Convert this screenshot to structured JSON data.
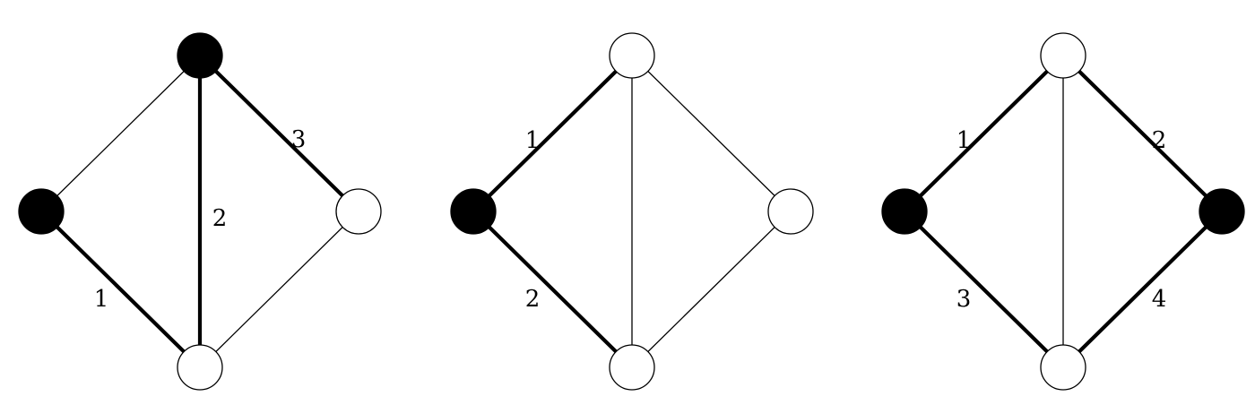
{
  "colors": {
    "stroke": "#000000",
    "filled_node": "#000000",
    "empty_node": "#ffffff",
    "background": "#ffffff"
  },
  "graphs": [
    {
      "name": "graph-1",
      "nodes": [
        {
          "id": "top",
          "filled": true
        },
        {
          "id": "left",
          "filled": true
        },
        {
          "id": "right",
          "filled": false
        },
        {
          "id": "bottom",
          "filled": false
        }
      ],
      "edges": [
        {
          "id": "top-left",
          "bold": false,
          "label": ""
        },
        {
          "id": "top-right",
          "bold": true,
          "label": "3"
        },
        {
          "id": "top-bottom",
          "bold": true,
          "label": "2"
        },
        {
          "id": "left-bottom",
          "bold": true,
          "label": "1"
        },
        {
          "id": "right-bottom",
          "bold": false,
          "label": ""
        }
      ]
    },
    {
      "name": "graph-2",
      "nodes": [
        {
          "id": "top",
          "filled": false
        },
        {
          "id": "left",
          "filled": true
        },
        {
          "id": "right",
          "filled": false
        },
        {
          "id": "bottom",
          "filled": false
        }
      ],
      "edges": [
        {
          "id": "top-left",
          "bold": true,
          "label": "1"
        },
        {
          "id": "top-right",
          "bold": false,
          "label": ""
        },
        {
          "id": "top-bottom",
          "bold": false,
          "label": ""
        },
        {
          "id": "left-bottom",
          "bold": true,
          "label": "2"
        },
        {
          "id": "right-bottom",
          "bold": false,
          "label": ""
        }
      ]
    },
    {
      "name": "graph-3",
      "nodes": [
        {
          "id": "top",
          "filled": false
        },
        {
          "id": "left",
          "filled": true
        },
        {
          "id": "right",
          "filled": true
        },
        {
          "id": "bottom",
          "filled": false
        }
      ],
      "edges": [
        {
          "id": "top-left",
          "bold": true,
          "label": "1"
        },
        {
          "id": "top-right",
          "bold": true,
          "label": "2"
        },
        {
          "id": "top-bottom",
          "bold": false,
          "label": ""
        },
        {
          "id": "left-bottom",
          "bold": true,
          "label": "3"
        },
        {
          "id": "right-bottom",
          "bold": true,
          "label": "4"
        }
      ]
    }
  ]
}
